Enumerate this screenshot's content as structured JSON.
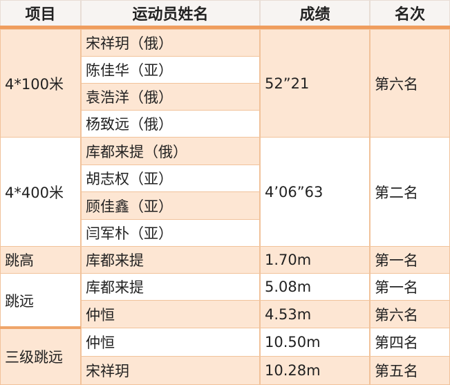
{
  "header": {
    "event": "项目",
    "athlete": "运动员姓名",
    "score": "成绩",
    "rank": "名次"
  },
  "rows": [
    {
      "event": "4*100米",
      "athletes": [
        "宋祥玥（俄）",
        "陈佳华（亚）",
        "袁浩洋（俄）",
        "杨致远（俄）"
      ],
      "score": "52”21",
      "rank": "第六名"
    },
    {
      "event": "4*400米",
      "athletes": [
        "库都来提（俄）",
        "胡志权（亚）",
        "顾佳鑫（亚）",
        "闫军朴（亚）"
      ],
      "score": "4’06”63",
      "rank": "第二名"
    },
    {
      "event": "跳高",
      "athletes": [
        "库都来提"
      ],
      "scores": [
        "1.70m"
      ],
      "ranks": [
        "第一名"
      ]
    },
    {
      "event": "跳远",
      "athletes": [
        "库都来提",
        "仲恒"
      ],
      "scores": [
        "5.08m",
        "4.53m"
      ],
      "ranks": [
        "第一名",
        "第六名"
      ]
    },
    {
      "event": "三级跳远",
      "athletes": [
        "仲恒",
        "宋祥玥"
      ],
      "scores": [
        "10.50m",
        "10.28m"
      ],
      "ranks": [
        "第四名",
        "第五名"
      ]
    }
  ],
  "colors": {
    "accent": "#ef9d5e",
    "row_fill": "#fde6d3",
    "border": "#f1c29a"
  }
}
